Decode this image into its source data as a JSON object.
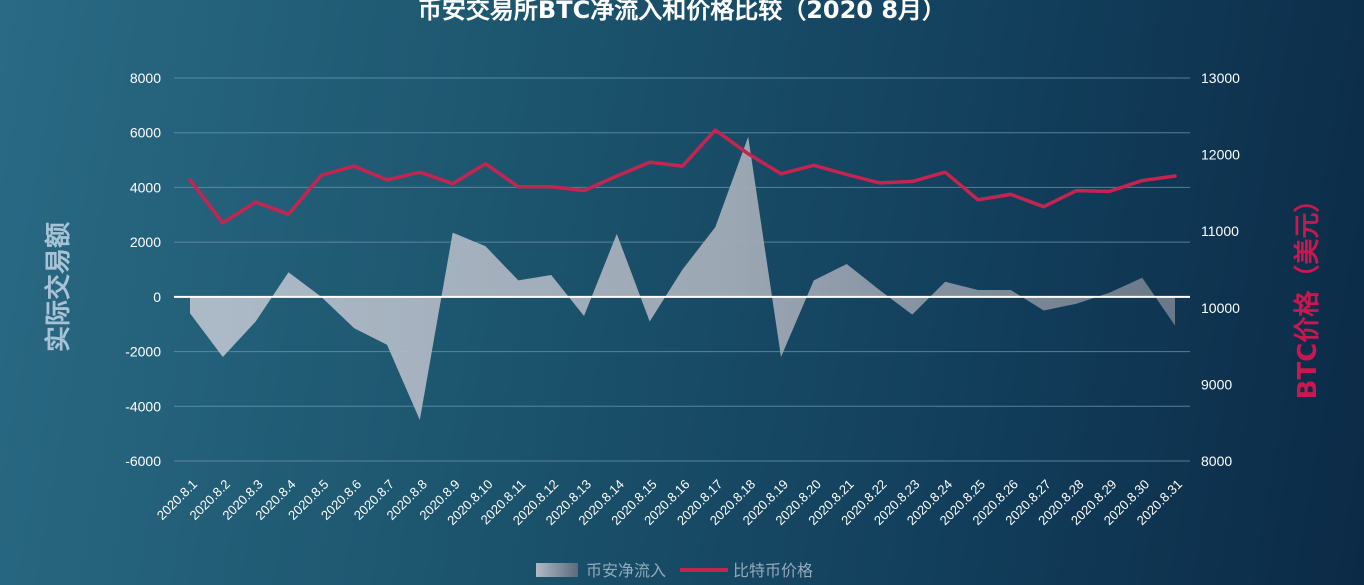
{
  "chart_data": {
    "type": "area+line",
    "title": "币安交易所BTC净流入和价格比较（2020 8月）",
    "ylabel_left": "实际交易额",
    "ylabel_right": "BTC价格（美元）",
    "categories": [
      "2020.8.1",
      "2020.8.2",
      "2020.8.3",
      "2020.8.4",
      "2020.8.5",
      "2020.8.6",
      "2020.8.7",
      "2020.8.8",
      "2020.8.9",
      "2020.8.10",
      "2020.8.11",
      "2020.8.12",
      "2020.8.13",
      "2020.8.14",
      "2020.8.15",
      "2020.8.16",
      "2020.8.17",
      "2020.8.18",
      "2020.8.19",
      "2020.8.20",
      "2020.8.21",
      "2020.8.22",
      "2020.8.23",
      "2020.8.24",
      "2020.8.25",
      "2020.8.26",
      "2020.8.27",
      "2020.8.28",
      "2020.8.29",
      "2020.8.30",
      "2020.8.31"
    ],
    "left_axis": {
      "ylim": [
        -6000,
        8000
      ],
      "ticks": [
        -6000,
        -4000,
        -2000,
        0,
        2000,
        4000,
        6000,
        8000
      ],
      "tick_labels": [
        "-6000",
        "-4000",
        "-2000",
        "0",
        "2000",
        "4000",
        "6000",
        "8000"
      ]
    },
    "right_axis": {
      "ylim": [
        8000,
        13000
      ],
      "ticks": [
        8000,
        9000,
        10000,
        11000,
        12000,
        13000
      ],
      "tick_labels": [
        "8000",
        "9000",
        "10000",
        "11000",
        "12000",
        "13000"
      ]
    },
    "series": [
      {
        "name": "币安净流入",
        "type": "area",
        "axis": "left",
        "color": "#a5b0bc",
        "values": [
          -600,
          -2200,
          -900,
          900,
          0,
          -1150,
          -1750,
          -4500,
          2350,
          1850,
          600,
          800,
          -700,
          2300,
          -900,
          1000,
          2550,
          5850,
          -2200,
          600,
          1200,
          250,
          -650,
          550,
          250,
          250,
          -500,
          -250,
          150,
          700,
          -1050
        ]
      },
      {
        "name": "比特币价格",
        "type": "line",
        "axis": "right",
        "color": "#c62450",
        "values": [
          11670,
          11110,
          11380,
          11220,
          11730,
          11850,
          11670,
          11770,
          11620,
          11880,
          11580,
          11580,
          11530,
          11720,
          11900,
          11850,
          12320,
          12010,
          11750,
          11860,
          11740,
          11630,
          11650,
          11770,
          11410,
          11480,
          11320,
          11530,
          11520,
          11660,
          11720
        ]
      }
    ],
    "grid": true,
    "legend_position": "bottom"
  }
}
